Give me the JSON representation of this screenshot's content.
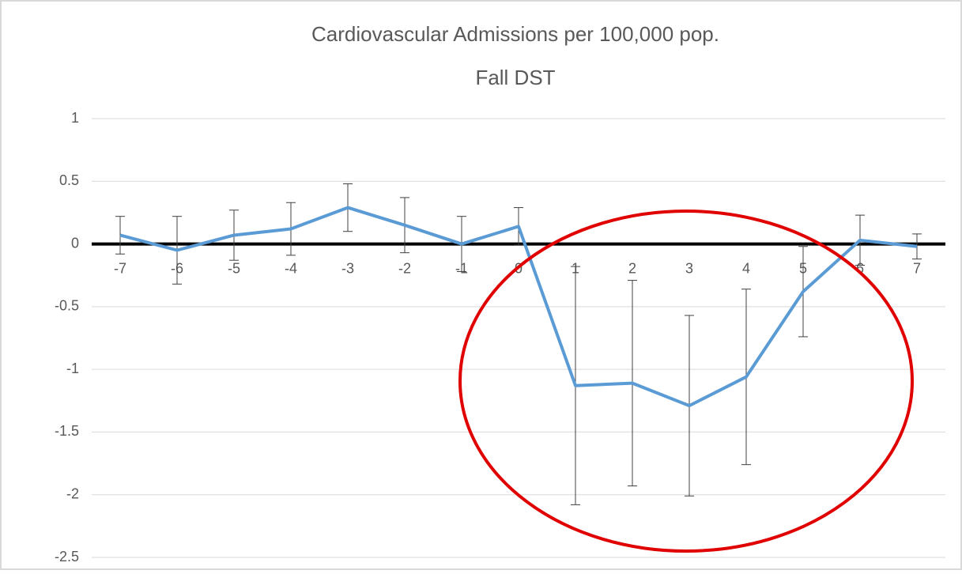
{
  "chart_data": {
    "type": "line",
    "title": "Cardiovascular Admissions per 100,000 pop.",
    "subtitle": "Fall DST",
    "x": [
      -7,
      -6,
      -5,
      -4,
      -3,
      -2,
      -1,
      0,
      1,
      2,
      3,
      4,
      5,
      6,
      7
    ],
    "xlim": [
      -7.5,
      7.5
    ],
    "series": [
      {
        "color": "#5b9bd5",
        "values": [
          0.07,
          -0.05,
          0.07,
          0.12,
          0.29,
          0.15,
          0.0,
          0.14,
          -1.13,
          -1.11,
          -1.29,
          -1.06,
          -0.38,
          0.03,
          -0.02
        ],
        "errors": [
          0.15,
          0.27,
          0.2,
          0.21,
          0.19,
          0.22,
          0.22,
          0.15,
          0.95,
          0.82,
          0.72,
          0.7,
          0.36,
          0.2,
          0.1
        ]
      }
    ],
    "ylim": [
      -2.5,
      1
    ],
    "yticks": [
      1,
      0.5,
      0,
      -0.5,
      -1,
      -1.5,
      -2,
      -2.5
    ],
    "grid": true
  }
}
